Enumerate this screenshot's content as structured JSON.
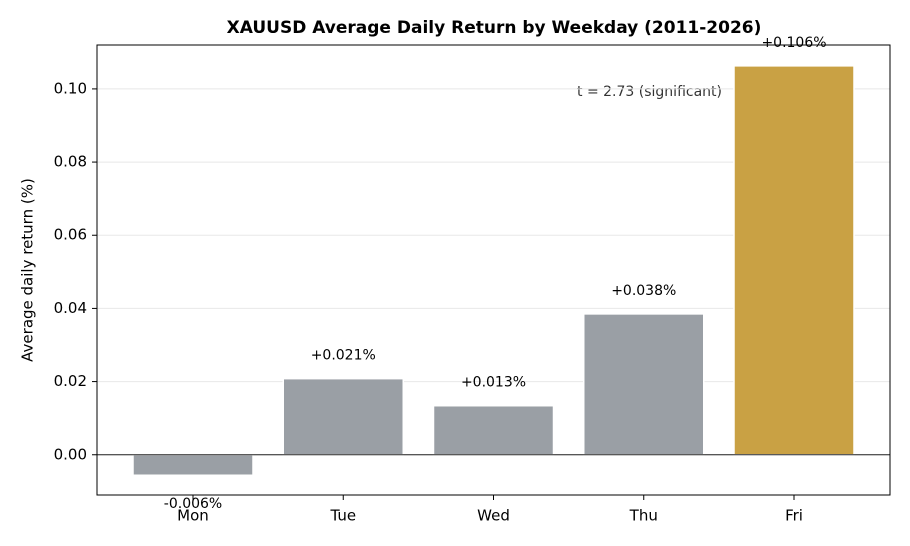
{
  "chart_data": {
    "type": "bar",
    "title": "XAUUSD Average Daily Return by Weekday (2011-2026)",
    "ylabel": "Average daily return (%)",
    "annotation": "t = 2.73 (significant)",
    "categories": [
      "Mon",
      "Tue",
      "Wed",
      "Thu",
      "Fri"
    ],
    "values": [
      -0.0056,
      0.0208,
      0.0134,
      0.0385,
      0.1063
    ],
    "value_labels": [
      "-0.006%",
      "+0.021%",
      "+0.013%",
      "+0.038%",
      "+0.106%"
    ],
    "colors": [
      "#9a9fa5",
      "#9a9fa5",
      "#9a9fa5",
      "#9a9fa5",
      "#c9a144"
    ],
    "ylim": [
      -0.011,
      0.112
    ],
    "yticks": [
      {
        "value": 0,
        "label": "0.00"
      },
      {
        "value": 0.02,
        "label": "0.02"
      },
      {
        "value": 0.04,
        "label": "0.04"
      },
      {
        "value": 0.06,
        "label": "0.06"
      },
      {
        "value": 0.08,
        "label": "0.08"
      },
      {
        "value": 0.1,
        "label": "0.10"
      }
    ],
    "grid": true
  }
}
